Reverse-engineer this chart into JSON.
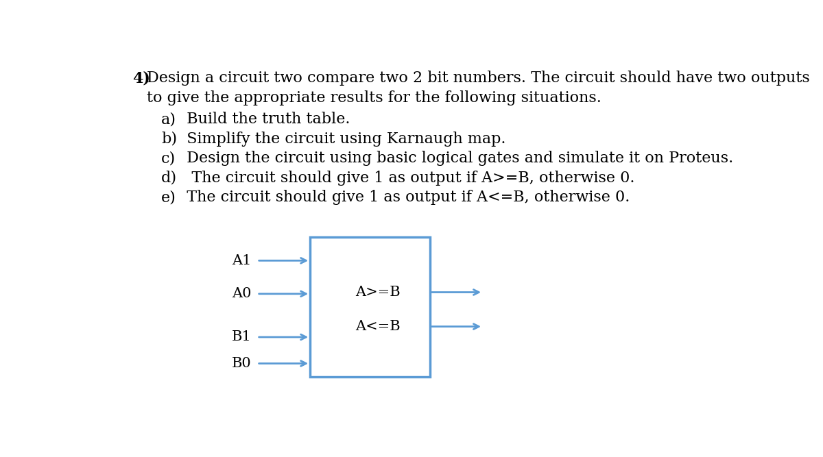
{
  "background_color": "#ffffff",
  "title_number": "4)",
  "title_text": "Design a circuit two compare two 2 bit numbers. The circuit should have two outputs",
  "line2": "to give the appropriate results for the following situations.",
  "items": [
    {
      "label": "a)",
      "text": "  Build the truth table."
    },
    {
      "label": "b)",
      "text": "  Simplify the circuit using Karnaugh map."
    },
    {
      "label": "c)",
      "text": "  Design the circuit using basic logical gates and simulate it on Proteus."
    },
    {
      "label": "d)",
      "text": "   The circuit should give 1 as output if A>=B, otherwise 0."
    },
    {
      "label": "e)",
      "text": "  The circuit should give 1 as output if A<=B, otherwise 0."
    }
  ],
  "box_color": "#5b9bd5",
  "arrow_color": "#5b9bd5",
  "font_color": "#000000",
  "text_font_size": 16,
  "diagram_font_size": 15,
  "diagram_label_font_size": 15
}
